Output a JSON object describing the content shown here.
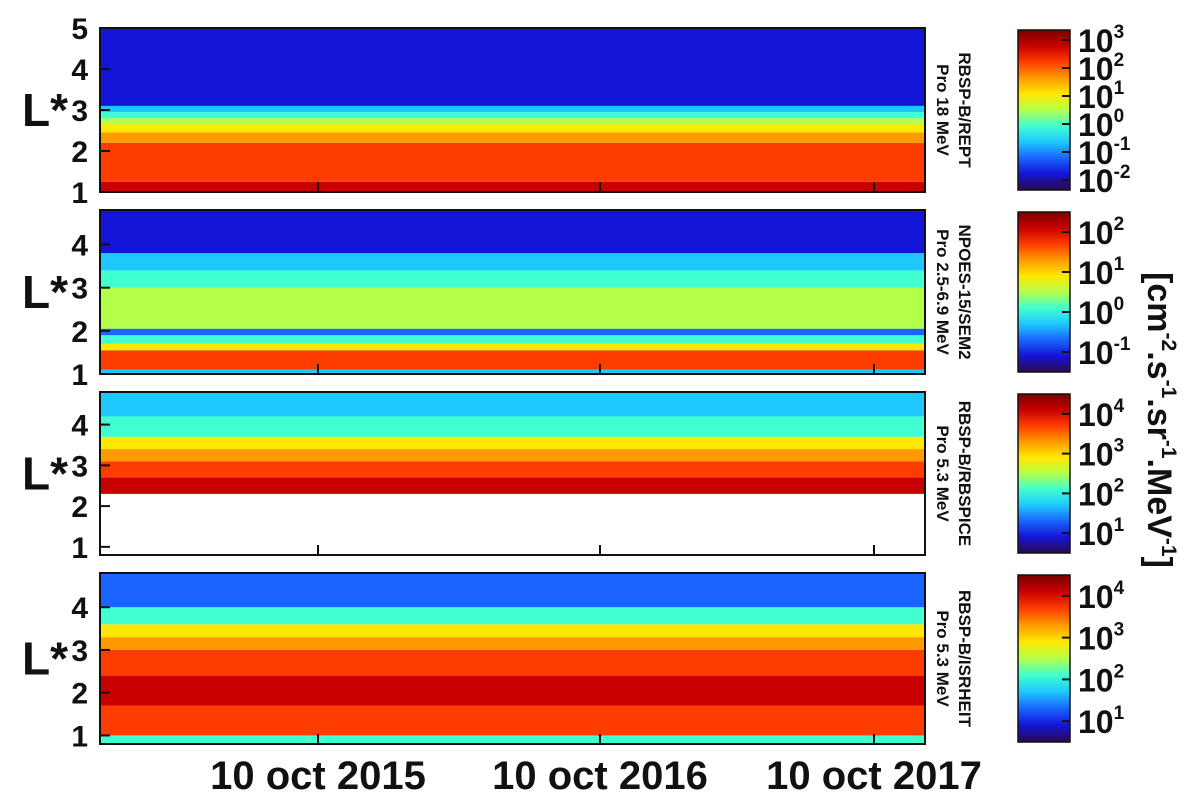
{
  "chart_data": {
    "type": "heatmap",
    "x_ticks": [
      "10 oct 2015",
      "10 oct 2016",
      "10 oct 2017"
    ],
    "colorbar_unit": "[cm-2.s-1.sr-1.MeV-1]",
    "colors": [
      "#2c0a4e",
      "#1414d6",
      "#1a64ff",
      "#1ec8ff",
      "#40ffd0",
      "#b4ff4a",
      "#ffe800",
      "#ff9a00",
      "#ff3c00",
      "#c80000",
      "#7a0000"
    ],
    "panels": [
      {
        "ylabel": "L*",
        "y_ticks": [
          "1",
          "2",
          "3",
          "4",
          "5"
        ],
        "ylim": [
          1,
          5
        ],
        "label_line1": "RBSP-B/REPT",
        "label_line2": "Pro 18 MeV",
        "colorbar_labels": [
          {
            "base": "10",
            "exp": "3"
          },
          {
            "base": "10",
            "exp": "2"
          },
          {
            "base": "10",
            "exp": "1"
          },
          {
            "base": "10",
            "exp": "0"
          },
          {
            "base": "10",
            "exp": "-1"
          },
          {
            "base": "10",
            "exp": "-2"
          }
        ],
        "bands": [
          {
            "from": 1.0,
            "to": 1.25,
            "color_index": 9
          },
          {
            "from": 1.25,
            "to": 2.2,
            "color_index": 8
          },
          {
            "from": 2.2,
            "to": 2.45,
            "color_index": 7
          },
          {
            "from": 2.45,
            "to": 2.65,
            "color_index": 6
          },
          {
            "from": 2.65,
            "to": 2.8,
            "color_index": 5
          },
          {
            "from": 2.8,
            "to": 2.95,
            "color_index": 4
          },
          {
            "from": 2.95,
            "to": 3.1,
            "color_index": 3
          },
          {
            "from": 3.1,
            "to": 5.0,
            "color_index": 1
          }
        ]
      },
      {
        "ylabel": "L*",
        "y_ticks": [
          "1",
          "2",
          "3",
          "4"
        ],
        "ylim": [
          1,
          4.8
        ],
        "label_line1": "NPOES-15/SEM2",
        "label_line2": "Pro 2.5-6.9 MeV",
        "colorbar_labels": [
          {
            "base": "10",
            "exp": "2"
          },
          {
            "base": "10",
            "exp": "1"
          },
          {
            "base": "10",
            "exp": "0"
          },
          {
            "base": "10",
            "exp": "-1"
          }
        ],
        "bands": [
          {
            "from": 1.0,
            "to": 1.1,
            "color_index": 3
          },
          {
            "from": 1.1,
            "to": 1.55,
            "color_index": 8
          },
          {
            "from": 1.55,
            "to": 1.7,
            "color_index": 6
          },
          {
            "from": 1.7,
            "to": 1.9,
            "color_index": 4
          },
          {
            "from": 1.9,
            "to": 2.05,
            "color_index": 2
          },
          {
            "from": 2.05,
            "to": 3.0,
            "color_index": 5
          },
          {
            "from": 3.0,
            "to": 3.4,
            "color_index": 4
          },
          {
            "from": 3.4,
            "to": 3.8,
            "color_index": 3
          },
          {
            "from": 3.8,
            "to": 4.8,
            "color_index": 1
          }
        ]
      },
      {
        "ylabel": "L*",
        "y_ticks": [
          "1",
          "2",
          "3",
          "4"
        ],
        "ylim": [
          0.8,
          4.8
        ],
        "label_line1": "RBSP-B/RBSPICE",
        "label_line2": "Pro 5.3 MeV",
        "colorbar_labels": [
          {
            "base": "10",
            "exp": "4"
          },
          {
            "base": "10",
            "exp": "3"
          },
          {
            "base": "10",
            "exp": "2"
          },
          {
            "base": "10",
            "exp": "1"
          }
        ],
        "bands": [
          {
            "from": 2.3,
            "to": 2.7,
            "color_index": 9
          },
          {
            "from": 2.7,
            "to": 3.1,
            "color_index": 8
          },
          {
            "from": 3.1,
            "to": 3.4,
            "color_index": 7
          },
          {
            "from": 3.4,
            "to": 3.7,
            "color_index": 6
          },
          {
            "from": 3.7,
            "to": 4.2,
            "color_index": 4
          },
          {
            "from": 4.2,
            "to": 4.8,
            "color_index": 3
          }
        ]
      },
      {
        "ylabel": "L*",
        "y_ticks": [
          "1",
          "2",
          "3",
          "4"
        ],
        "ylim": [
          0.8,
          4.8
        ],
        "label_line1": "RBSP-B/ISRHEIT",
        "label_line2": "Pro 5.3 MeV",
        "colorbar_labels": [
          {
            "base": "10",
            "exp": "4"
          },
          {
            "base": "10",
            "exp": "3"
          },
          {
            "base": "10",
            "exp": "2"
          },
          {
            "base": "10",
            "exp": "1"
          }
        ],
        "bands": [
          {
            "from": 0.8,
            "to": 1.0,
            "color_index": 4
          },
          {
            "from": 1.0,
            "to": 1.7,
            "color_index": 8
          },
          {
            "from": 1.7,
            "to": 2.4,
            "color_index": 9
          },
          {
            "from": 2.4,
            "to": 3.0,
            "color_index": 8
          },
          {
            "from": 3.0,
            "to": 3.3,
            "color_index": 7
          },
          {
            "from": 3.3,
            "to": 3.6,
            "color_index": 6
          },
          {
            "from": 3.6,
            "to": 4.0,
            "color_index": 4
          },
          {
            "from": 4.0,
            "to": 4.8,
            "color_index": 2
          }
        ]
      }
    ]
  }
}
